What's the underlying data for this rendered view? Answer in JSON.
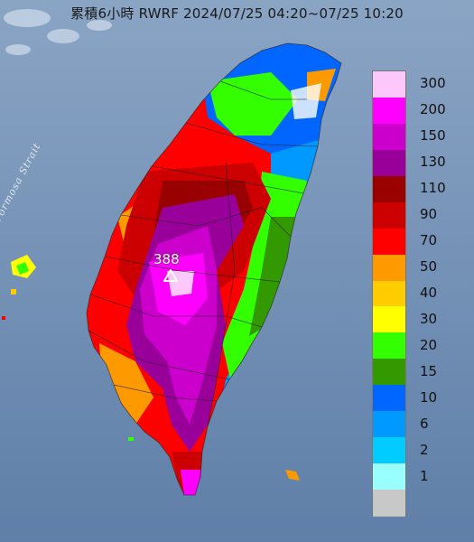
{
  "title": "累積6小時 RWRF 2024/07/25 04:20~07/25 10:20",
  "sea_label": "Formosa Strait",
  "peak_value": "388",
  "legend": [
    {
      "label": "300",
      "color": "#fcc8fc"
    },
    {
      "label": "200",
      "color": "#ff00ff"
    },
    {
      "label": "150",
      "color": "#cc00cc"
    },
    {
      "label": "130",
      "color": "#990099"
    },
    {
      "label": "110",
      "color": "#990000"
    },
    {
      "label": "90",
      "color": "#cc0000"
    },
    {
      "label": "70",
      "color": "#ff0000"
    },
    {
      "label": "50",
      "color": "#ff9900"
    },
    {
      "label": "40",
      "color": "#ffcc00"
    },
    {
      "label": "30",
      "color": "#ffff00"
    },
    {
      "label": "20",
      "color": "#33ff00"
    },
    {
      "label": "15",
      "color": "#339900"
    },
    {
      "label": "10",
      "color": "#0066ff"
    },
    {
      "label": "6",
      "color": "#0099ff"
    },
    {
      "label": "2",
      "color": "#00ccff"
    },
    {
      "label": "1",
      "color": "#99ffff"
    },
    {
      "label": "",
      "color": "#c8c8c8"
    }
  ]
}
